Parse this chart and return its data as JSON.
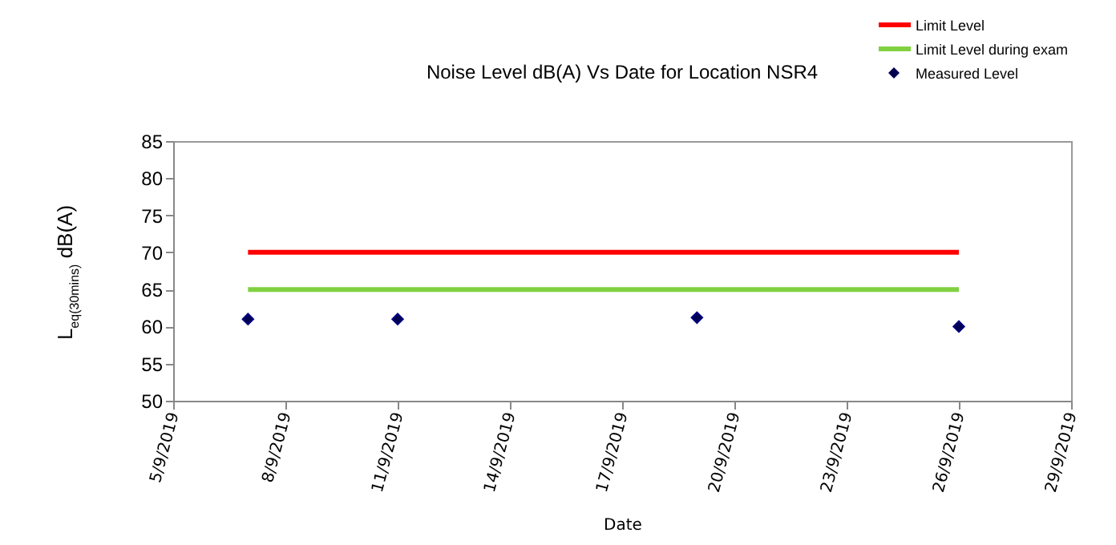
{
  "chart_data": {
    "type": "scatter",
    "title": "Noise Level dB(A) Vs Date for Location NSR4",
    "xlabel": "Date",
    "ylabel": "L$_{eq(30mins)}$ dB(A)",
    "xlim": [
      "2019-09-05",
      "2019-09-29"
    ],
    "xticks": [
      {
        "value": "2019-09-05",
        "label": "5/9/2019"
      },
      {
        "value": "2019-09-08",
        "label": "8/9/2019"
      },
      {
        "value": "2019-09-11",
        "label": "11/9/2019"
      },
      {
        "value": "2019-09-14",
        "label": "14/9/2019"
      },
      {
        "value": "2019-09-17",
        "label": "17/9/2019"
      },
      {
        "value": "2019-09-20",
        "label": "20/9/2019"
      },
      {
        "value": "2019-09-23",
        "label": "23/9/2019"
      },
      {
        "value": "2019-09-26",
        "label": "26/9/2019"
      },
      {
        "value": "2019-09-29",
        "label": "29/9/2019"
      }
    ],
    "ylim": [
      50,
      85
    ],
    "yticks": [
      50,
      55,
      60,
      65,
      70,
      75,
      80,
      85
    ],
    "grid": false,
    "legend": "top right",
    "series": [
      {
        "name": "Limit Level",
        "type": "line",
        "color": "#ff0000",
        "x": [
          "2019-09-07",
          "2019-09-26"
        ],
        "values": [
          70,
          70
        ]
      },
      {
        "name": "Limit Level during exam",
        "type": "line",
        "color": "#80d040",
        "x": [
          "2019-09-07",
          "2019-09-26"
        ],
        "values": [
          65,
          65
        ]
      },
      {
        "name": "Measured Level",
        "marker": "diamond",
        "color": "#000050",
        "x": [
          "2019-09-07",
          "2019-09-11",
          "2019-09-19",
          "2019-09-26"
        ],
        "values": [
          61,
          61,
          61.2,
          60
        ]
      }
    ]
  }
}
